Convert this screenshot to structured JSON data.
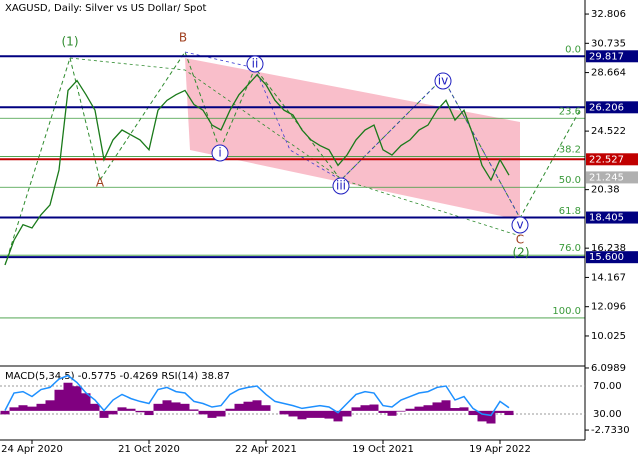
{
  "chart_data": [
    {
      "type": "line",
      "title": "XAGUSD, Daily:  Silver vs US Dollar/ Spot",
      "categories": [
        null,
        null,
        null,
        "24 Apr 2020",
        null,
        null,
        null,
        null,
        null,
        null,
        null,
        null,
        null,
        null,
        null,
        null,
        "21 Oct 2020",
        null,
        null,
        null,
        null,
        null,
        null,
        null,
        null,
        null,
        null,
        null,
        null,
        "22 Apr 2021",
        null,
        null,
        null,
        null,
        null,
        null,
        null,
        null,
        null,
        null,
        null,
        null,
        "19 Oct 2021",
        null,
        null,
        null,
        null,
        null,
        null,
        null,
        null,
        null,
        null,
        null,
        null,
        "19 Apr 2022",
        null
      ],
      "series": [
        {
          "color": "#1a7a1a",
          "values": [
            15.05,
            16.8,
            17.9,
            17.67,
            18.6,
            19.3,
            21.77,
            27.4,
            28.1,
            27.1,
            26.0,
            22.5,
            23.9,
            24.6,
            24.25,
            23.9,
            23.2,
            26.0,
            26.7,
            27.1,
            27.4,
            26.4,
            26.0,
            24.95,
            24.6,
            26.0,
            27.1,
            27.8,
            28.5,
            27.8,
            26.7,
            26.0,
            25.66,
            24.6,
            23.9,
            23.5,
            23.2,
            22.1,
            22.83,
            23.9,
            24.6,
            24.95,
            23.2,
            22.83,
            23.5,
            23.9,
            24.6,
            24.95,
            26.0,
            26.7,
            25.3,
            26.0,
            24.25,
            22.1,
            21.06,
            22.5,
            21.4
          ]
        }
      ],
      "ylim": [
        7.97,
        33.8
      ],
      "yticks": [
        32.806,
        30.735,
        28.664,
        24.522,
        20.38,
        16.238,
        14.167,
        12.096,
        10.025
      ],
      "levels": [
        {
          "value": 29.817,
          "color": "#000080"
        },
        {
          "value": 26.206,
          "color": "#000080"
        },
        {
          "value": 22.527,
          "color": "#c00000"
        },
        {
          "value": 21.245,
          "color": "#b0b0b0"
        },
        {
          "value": 18.405,
          "color": "#000080"
        },
        {
          "value": 15.6,
          "label": "15.600",
          "color": "#000080"
        }
      ],
      "fib_levels": [
        {
          "label": "0.0",
          "price": 29.8
        },
        {
          "label": "23.6",
          "price": 25.43
        },
        {
          "label": "38.2",
          "price": 22.73
        },
        {
          "label": "50.0",
          "price": 20.55
        },
        {
          "label": "61.8",
          "price": 18.37
        },
        {
          "label": "76.0",
          "price": 15.74
        },
        {
          "label": "100.0",
          "price": 11.3
        }
      ],
      "wave_labels": [
        "(1)",
        "B",
        "A",
        "ii",
        "i",
        "iii",
        "iv",
        "v",
        "C",
        "(2)"
      ]
    },
    {
      "type": "macd",
      "title": "MACD(5,34,5) -0.5775 -0.4269 RSI(14) 38.87",
      "series": [
        {
          "color": "#800080",
          "values": [
            -0.5,
            0.5,
            0.8,
            0.6,
            1,
            1.5,
            3,
            4,
            3.5,
            2.5,
            1,
            -1,
            -0.5,
            0.5,
            0.3,
            -0.2,
            -0.6,
            1,
            1.5,
            1.2,
            1,
            0.2,
            -0.5,
            -1,
            -0.8,
            0.3,
            1,
            1.3,
            1.5,
            0.8,
            0,
            -0.5,
            -0.8,
            -1.2,
            -1,
            -1,
            -1.1,
            -1.5,
            -0.8,
            0.5,
            0.8,
            0.9,
            -0.3,
            -0.7,
            -0.1,
            0.3,
            0.6,
            0.8,
            1.2,
            1.5,
            0.4,
            0.5,
            -0.6,
            -1.5,
            -1.8,
            -0.3,
            -0.6
          ]
        },
        {
          "color": "#1e90ff",
          "axis": "y2",
          "values": [
            35,
            60,
            62,
            55,
            65,
            68,
            80,
            85,
            75,
            60,
            50,
            35,
            50,
            58,
            52,
            48,
            45,
            65,
            68,
            62,
            60,
            48,
            45,
            40,
            42,
            58,
            65,
            68,
            70,
            58,
            48,
            45,
            42,
            38,
            40,
            42,
            40,
            32,
            45,
            58,
            62,
            60,
            42,
            40,
            50,
            55,
            60,
            62,
            68,
            70,
            50,
            55,
            38,
            30,
            28,
            48,
            39
          ]
        }
      ],
      "ylim": [
        -5.0,
        6.38
      ],
      "yticks": [
        6.0989,
        {
          "value": -2.733,
          "label": "-2.7330"
        }
      ],
      "y2lim": [
        -15.7,
        98.6
      ],
      "y2ticks": [
        {
          "value": 70,
          "label": "70.00"
        },
        {
          "value": 30,
          "label": "30.00"
        }
      ]
    }
  ]
}
